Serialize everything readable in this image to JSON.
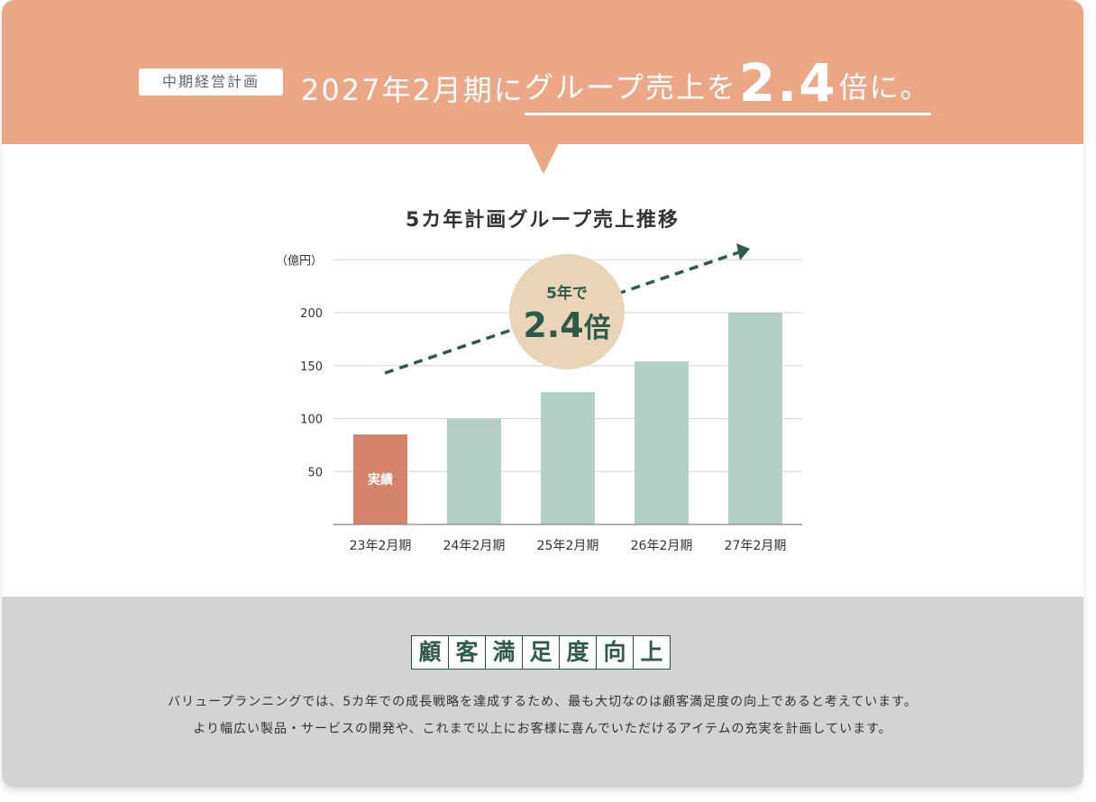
{
  "header": {
    "tag": "中期経営計画",
    "headline_prefix": "2027年2月期に",
    "headline_underlined": "グループ売上を",
    "headline_number": "2.4",
    "headline_suffix": "倍に。"
  },
  "badge": {
    "line1": "5年で",
    "value": "2.4",
    "unit": "倍"
  },
  "chart_data": {
    "type": "bar",
    "title": "5カ年計画グループ売上推移",
    "ylabel": "（億円）",
    "categories": [
      "23年2月期",
      "24年2月期",
      "25年2月期",
      "26年2月期",
      "27年2月期"
    ],
    "values": [
      85,
      100,
      125,
      154,
      200
    ],
    "yticks": [
      50,
      100,
      150,
      200
    ],
    "ylim": [
      0,
      250
    ],
    "bar_labels": [
      "実績",
      "",
      "",
      "",
      ""
    ],
    "colors": {
      "actual": "#d4836a",
      "plan": "#b4d0c4",
      "arrow": "#2e5a4a",
      "badge": "#e9d4b8",
      "grid": "#d6d6d6"
    }
  },
  "footer": {
    "heading": [
      "顧",
      "客",
      "満",
      "足",
      "度",
      "向",
      "上"
    ],
    "line1": "バリュープランニングでは、5カ年での成長戦略を達成するため、最も大切なのは顧客満足度の向上であると考えています。",
    "line2": "より幅広い製品・サービスの開発や、これまで以上にお客様に喜んでいただけるアイテムの充実を計画しています。"
  }
}
